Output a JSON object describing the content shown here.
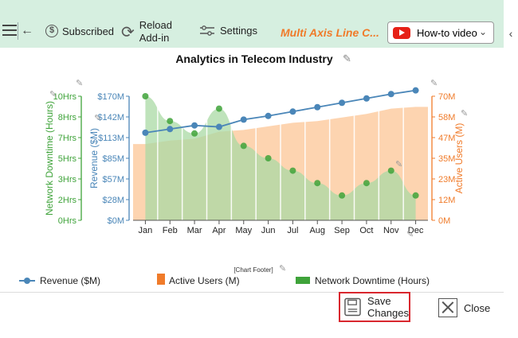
{
  "toolbar": {
    "subscribed_label": "Subscribed",
    "reload_label_1": "Reload",
    "reload_label_2": "Add-in",
    "settings_label": "Settings",
    "title_chip": "Multi Axis Line C...",
    "howto_label": "How-to video"
  },
  "footer": {
    "save_label_1": "Save",
    "save_label_2": "Changes",
    "close_label": "Close"
  },
  "colors": {
    "revenue": "#4a86b8",
    "active_users": "#f07b2a",
    "downtime": "#3fa33a",
    "area_users": "#fdd4b0",
    "area_downtime": "#a9d9a4",
    "accent_red": "#d9272e"
  },
  "chart_data": {
    "type": "line",
    "title": "Analytics in Telecom Industry",
    "footer": "[Chart Footer]",
    "categories": [
      "Jan",
      "Feb",
      "Mar",
      "Apr",
      "May",
      "Jun",
      "Jul",
      "Aug",
      "Sep",
      "Oct",
      "Nov",
      "Dec"
    ],
    "axes": {
      "downtime": {
        "label": "Network Downtime (Hours)",
        "ticks": [
          "0Hrs",
          "2Hrs",
          "3Hrs",
          "5Hrs",
          "7Hrs",
          "8Hrs",
          "10Hrs"
        ],
        "ylim": [
          0,
          10
        ],
        "position": "left-outer"
      },
      "revenue": {
        "label": "Revenue ($M)",
        "ticks": [
          "$0M",
          "$28M",
          "$57M",
          "$85M",
          "$113M",
          "$142M",
          "$170M"
        ],
        "ylim": [
          0,
          170
        ],
        "position": "left-inner"
      },
      "users": {
        "label": "Active Users (M)",
        "ticks": [
          "0M",
          "12M",
          "23M",
          "35M",
          "47M",
          "58M",
          "70M"
        ],
        "ylim": [
          0,
          70
        ],
        "position": "right"
      }
    },
    "series": [
      {
        "name": "Revenue ($M)",
        "axis": "revenue",
        "style": "line",
        "values": [
          120,
          125,
          130,
          128,
          138,
          143,
          149,
          155,
          161,
          167,
          173,
          178
        ]
      },
      {
        "name": "Active Users (M)",
        "axis": "users",
        "style": "area",
        "values": [
          43,
          45,
          46,
          50,
          51,
          53,
          55,
          56,
          58,
          60,
          63,
          64
        ]
      },
      {
        "name": "Network Downtime (Hours)",
        "axis": "downtime",
        "style": "area",
        "values": [
          10,
          8,
          7,
          9,
          6,
          5,
          4,
          3,
          2,
          3,
          4,
          2
        ]
      }
    ],
    "legend_placement": "bottom"
  }
}
